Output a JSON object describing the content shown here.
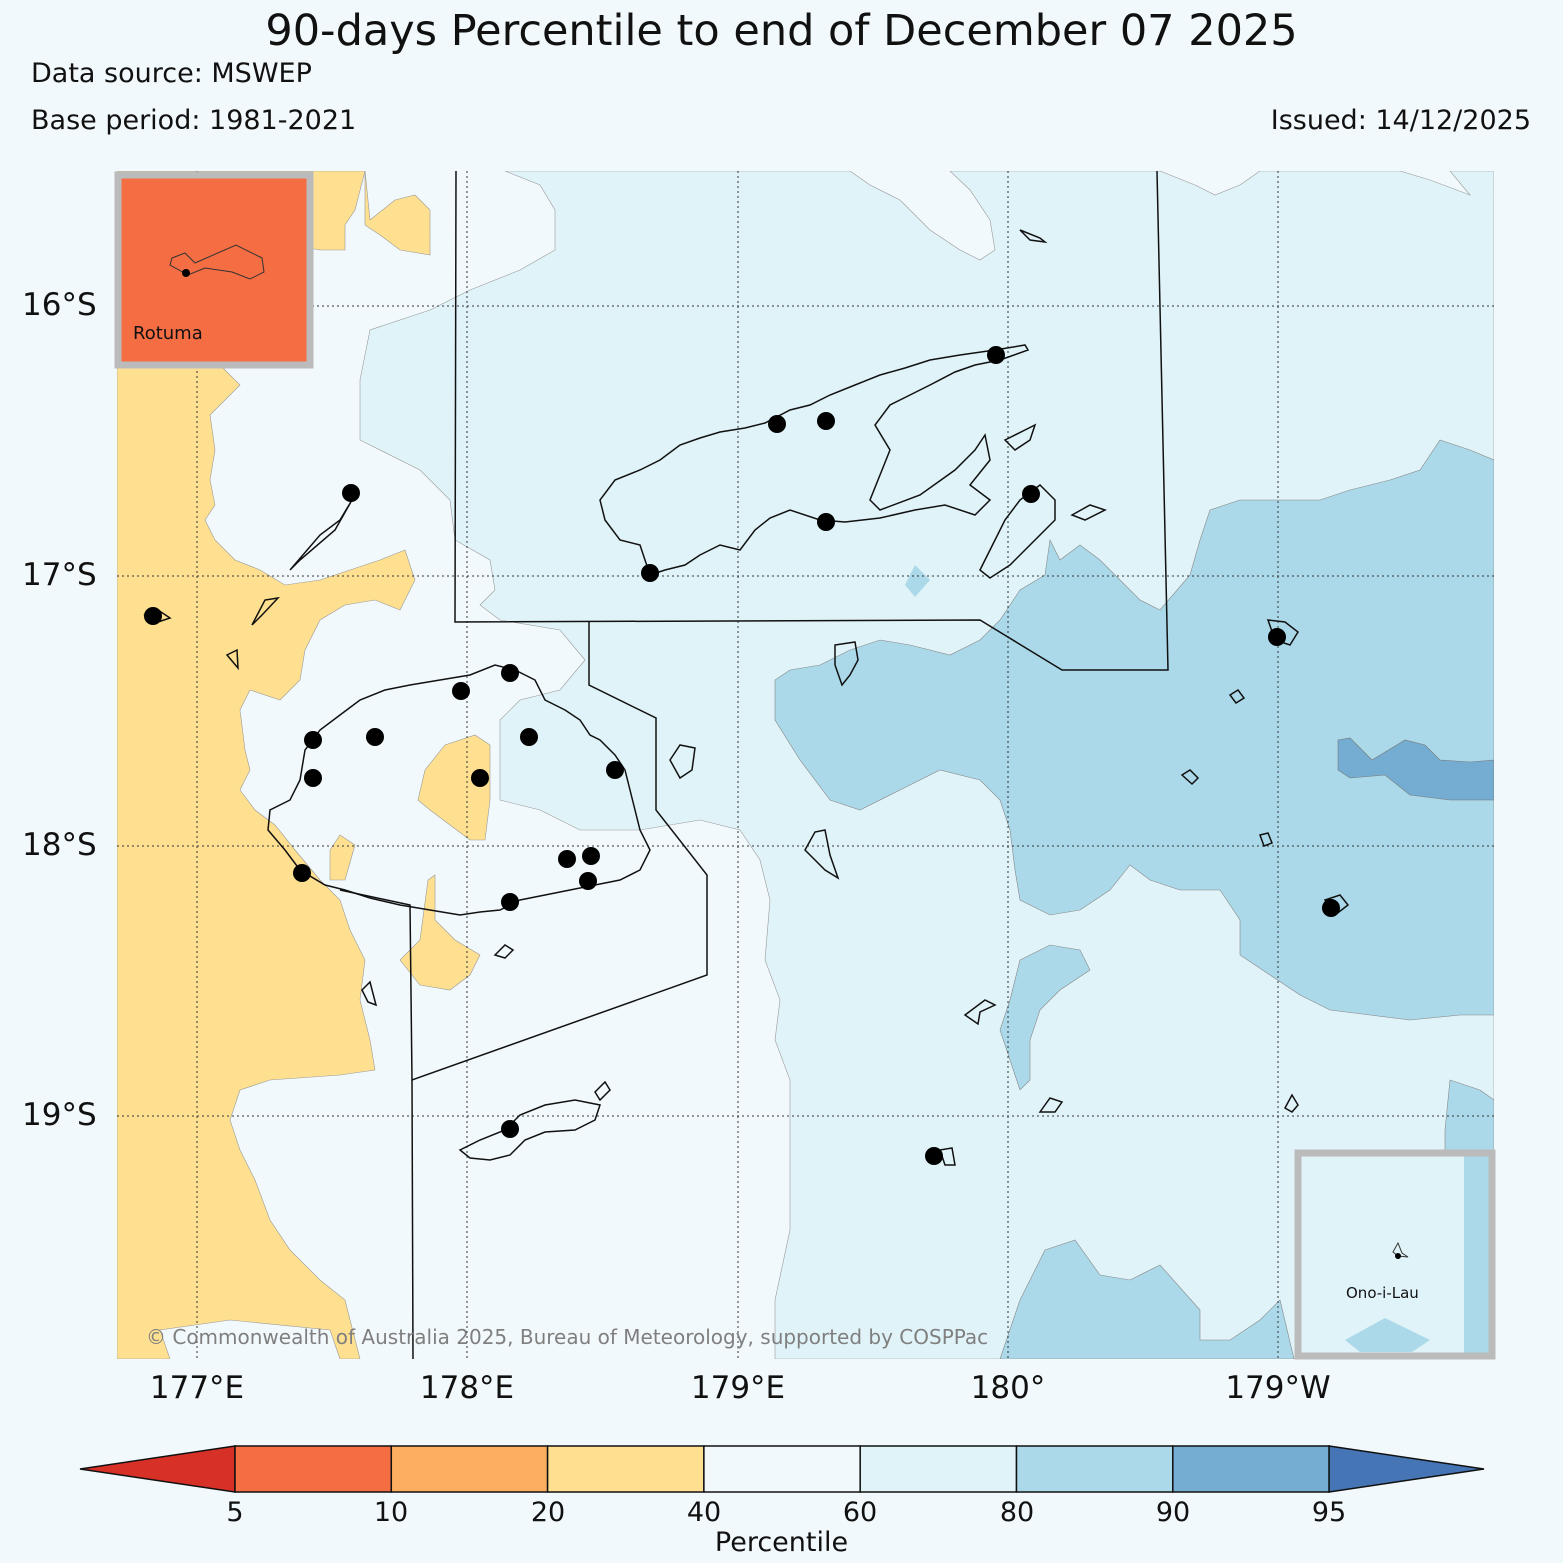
{
  "title": "90-days Percentile to end of December 07 2025",
  "data_source": "Data source: MSWEP",
  "base_period": "Base period: 1981-2021",
  "issued": "Issued: 14/12/2025",
  "copyright": "© Commonwealth of Australia 2025, Bureau of Meteorology, supported by COSPPac",
  "lat_labels": [
    "16°S",
    "17°S",
    "18°S",
    "19°S"
  ],
  "lon_labels": [
    "177°E",
    "178°E",
    "179°E",
    "180°",
    "179°W"
  ],
  "insets": {
    "rotuma": "Rotuma",
    "ono": "Ono-i-Lau"
  },
  "colorbar": {
    "title": "Percentile",
    "ticks": [
      "5",
      "10",
      "20",
      "40",
      "60",
      "80",
      "90",
      "95"
    ],
    "colors": [
      "#d73027",
      "#f46d43",
      "#fdae61",
      "#fee090",
      "#f2f9fc",
      "#e0f3f8",
      "#abd9e9",
      "#74add1",
      "#4575b4"
    ]
  },
  "class_colors": {
    "below_20_40": "#fee090",
    "normal_40_60": "#f2f9fc",
    "above_60_80": "#e0f3f8",
    "high_80_90": "#abd9e9",
    "very_high_90_95": "#74add1",
    "rotuma_inset": "#f46d43"
  }
}
